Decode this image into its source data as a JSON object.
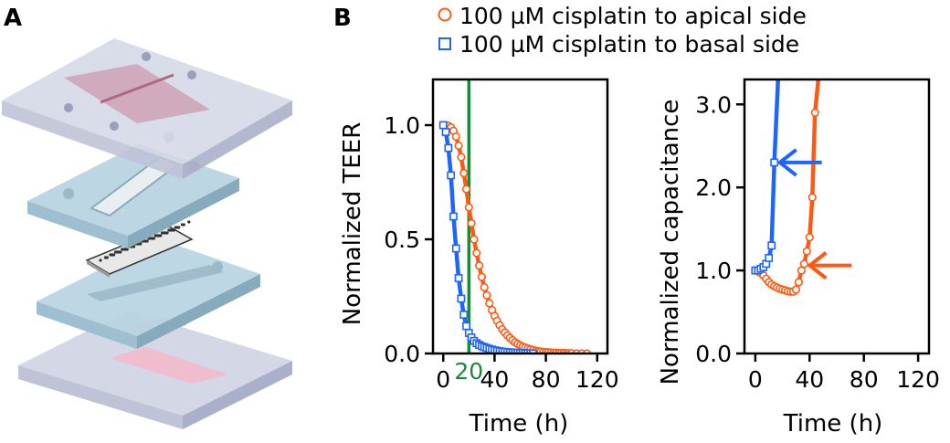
{
  "panel_labels": {
    "a": "A",
    "b": "B"
  },
  "legend": {
    "apical": "100 µM cisplatin to apical side",
    "basal": "100 µM cisplatin to basal side"
  },
  "colors": {
    "apical": "#ff5a14",
    "basal": "#1e64ff",
    "marker_line": "#1a8a3a",
    "axis": "#000000"
  },
  "illustration": {
    "description_icon": "exploded-chip-layers-icon"
  },
  "chart_data": [
    {
      "type": "scatter",
      "title": "",
      "xlabel": "Time (h)",
      "ylabel": "Normalized TEER",
      "xlim": [
        -8,
        128
      ],
      "ylim": [
        0,
        1.2
      ],
      "xticks": [
        0,
        40,
        80,
        120
      ],
      "yticks": [
        0.0,
        0.5,
        1.0
      ],
      "xtick_labels": [
        "0",
        "40",
        "80",
        "120"
      ],
      "ytick_labels": [
        "0.0",
        "0.5",
        "1.0"
      ],
      "vline": {
        "x": 20,
        "label": "20"
      },
      "series": [
        {
          "name": "100 µM cisplatin to apical side",
          "marker": "circle",
          "x": [
            0,
            2,
            4,
            6,
            8,
            10,
            12,
            14,
            16,
            18,
            20,
            22,
            24,
            26,
            28,
            30,
            32,
            34,
            36,
            38,
            40,
            42,
            44,
            46,
            48,
            50,
            52,
            54,
            56,
            58,
            60,
            62,
            64,
            66,
            68,
            70,
            72,
            74,
            76,
            78,
            80,
            82,
            84,
            86,
            88,
            90,
            92,
            94,
            96,
            98,
            100,
            104,
            108,
            112
          ],
          "y": [
            1.0,
            1.0,
            0.997,
            0.99,
            0.975,
            0.95,
            0.91,
            0.86,
            0.79,
            0.72,
            0.64,
            0.57,
            0.5,
            0.44,
            0.385,
            0.335,
            0.29,
            0.255,
            0.22,
            0.19,
            0.165,
            0.143,
            0.124,
            0.106,
            0.092,
            0.079,
            0.068,
            0.058,
            0.049,
            0.042,
            0.036,
            0.03,
            0.026,
            0.022,
            0.018,
            0.015,
            0.012,
            0.01,
            0.008,
            0.007,
            0.006,
            0.005,
            0.004,
            0.003,
            0.003,
            0.002,
            0.002,
            0.002,
            0.001,
            0.001,
            0.001,
            0.0,
            0.0,
            0.0
          ]
        },
        {
          "name": "100 µM cisplatin to basal side",
          "marker": "square",
          "x": [
            0,
            2,
            4,
            6,
            8,
            10,
            12,
            14,
            16,
            18,
            20,
            22,
            24,
            26,
            28,
            30,
            32,
            34,
            36,
            38,
            40,
            42,
            44,
            46,
            48,
            50,
            52,
            54,
            56,
            58,
            60,
            62,
            64,
            66,
            68,
            70
          ],
          "y": [
            1.0,
            0.97,
            0.9,
            0.78,
            0.6,
            0.46,
            0.33,
            0.24,
            0.17,
            0.12,
            0.09,
            0.07,
            0.055,
            0.045,
            0.038,
            0.032,
            0.028,
            0.024,
            0.02,
            0.017,
            0.014,
            0.012,
            0.01,
            0.008,
            0.007,
            0.006,
            0.005,
            0.004,
            0.003,
            0.003,
            0.002,
            0.002,
            0.001,
            0.001,
            0.0,
            0.0
          ]
        }
      ]
    },
    {
      "type": "scatter",
      "title": "",
      "xlabel": "Time (h)",
      "ylabel": "Normalized capacitance",
      "xlim": [
        -8,
        128
      ],
      "ylim": [
        0,
        3.3
      ],
      "xticks": [
        0,
        40,
        80,
        120
      ],
      "yticks": [
        0.0,
        1.0,
        2.0,
        3.0
      ],
      "xtick_labels": [
        "0",
        "40",
        "80",
        "120"
      ],
      "ytick_labels": [
        "0.0",
        "1.0",
        "2.0",
        "3.0"
      ],
      "arrows": [
        {
          "series": "basal",
          "x": 14,
          "y": 2.3
        },
        {
          "series": "apical",
          "x": 36,
          "y": 1.06
        }
      ],
      "series": [
        {
          "name": "100 µM cisplatin to apical side",
          "marker": "circle",
          "x": [
            0,
            2,
            4,
            6,
            8,
            10,
            12,
            14,
            16,
            18,
            20,
            22,
            24,
            26,
            28,
            30,
            32,
            34,
            36,
            38,
            40,
            42,
            44
          ],
          "y": [
            1.0,
            0.99,
            0.97,
            0.94,
            0.9,
            0.86,
            0.83,
            0.81,
            0.795,
            0.78,
            0.77,
            0.76,
            0.75,
            0.745,
            0.745,
            0.77,
            0.86,
            1.0,
            1.08,
            1.23,
            1.4,
            1.88,
            2.9
          ],
          "continues_to": [
            47,
            3.3
          ]
        },
        {
          "name": "100 µM cisplatin to basal side",
          "marker": "square",
          "x": [
            0,
            2,
            4,
            6,
            8,
            10,
            12,
            14
          ],
          "y": [
            1.0,
            1.0,
            1.02,
            1.04,
            1.08,
            1.15,
            1.3,
            2.3
          ],
          "continues_to": [
            17,
            3.3
          ]
        }
      ]
    }
  ]
}
